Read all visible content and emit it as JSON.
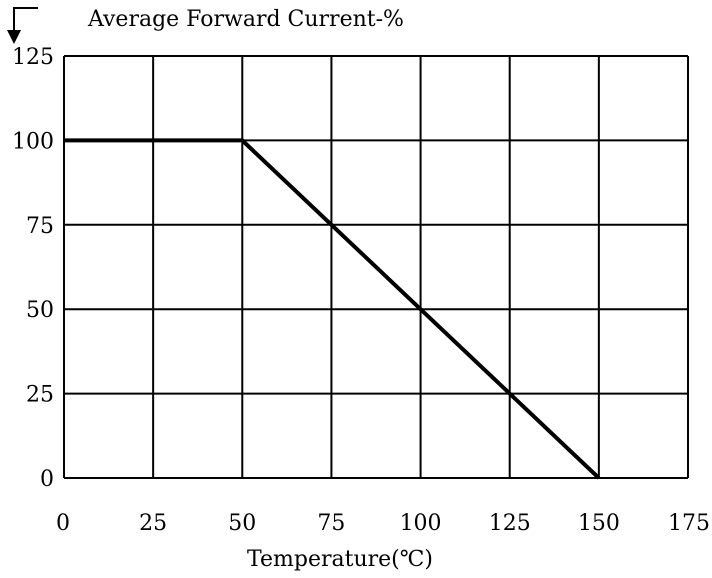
{
  "chart_data": {
    "type": "line",
    "ylabel": "Average Forward Current-%",
    "xlabel": "Temperature(℃)",
    "x_ticks": [
      "0",
      "25",
      "50",
      "75",
      "100",
      "125",
      "150",
      "175"
    ],
    "y_ticks": [
      "0",
      "25",
      "50",
      "75",
      "100",
      "125"
    ],
    "xlim": [
      0,
      175
    ],
    "ylim": [
      0,
      125
    ],
    "grid": true,
    "series": [
      {
        "x": [
          0,
          50,
          150
        ],
        "y": [
          100,
          100,
          0
        ],
        "color": "#000000"
      }
    ]
  }
}
